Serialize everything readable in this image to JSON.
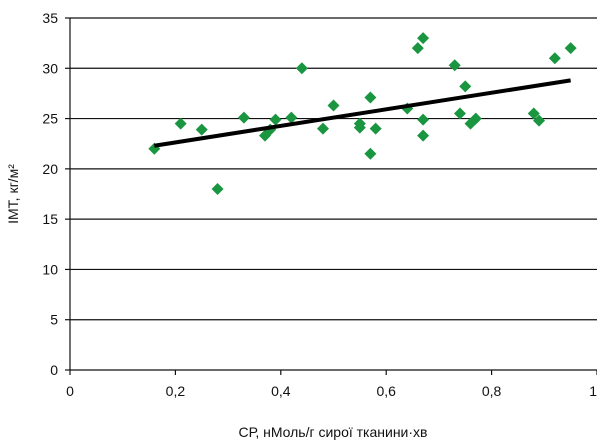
{
  "chart_data": {
    "type": "scatter",
    "xlabel": "СР, нМоль/г сирої тканини·хв",
    "ylabel": "ІМТ, кг/м²",
    "xlim": [
      0,
      1
    ],
    "ylim": [
      0,
      35
    ],
    "xticks": [
      0,
      0.2,
      0.4,
      0.6,
      0.8,
      1
    ],
    "xtick_labels": [
      "0",
      "0,2",
      "0,4",
      "0,6",
      "0,8",
      "1"
    ],
    "yticks": [
      0,
      5,
      10,
      15,
      20,
      25,
      30,
      35
    ],
    "ytick_labels": [
      "0",
      "5",
      "10",
      "15",
      "20",
      "25",
      "30",
      "35"
    ],
    "grid": "horizontal",
    "marker_color": "#1a9641",
    "trendline_color": "#000000",
    "points": [
      {
        "x": 0.16,
        "y": 22.0
      },
      {
        "x": 0.21,
        "y": 24.5
      },
      {
        "x": 0.25,
        "y": 23.9
      },
      {
        "x": 0.28,
        "y": 18.0
      },
      {
        "x": 0.33,
        "y": 25.1
      },
      {
        "x": 0.37,
        "y": 23.3
      },
      {
        "x": 0.38,
        "y": 23.9
      },
      {
        "x": 0.39,
        "y": 24.9
      },
      {
        "x": 0.42,
        "y": 25.1
      },
      {
        "x": 0.44,
        "y": 30.0
      },
      {
        "x": 0.48,
        "y": 24.0
      },
      {
        "x": 0.5,
        "y": 26.3
      },
      {
        "x": 0.55,
        "y": 24.1
      },
      {
        "x": 0.55,
        "y": 24.5
      },
      {
        "x": 0.57,
        "y": 21.5
      },
      {
        "x": 0.57,
        "y": 27.1
      },
      {
        "x": 0.58,
        "y": 24.0
      },
      {
        "x": 0.64,
        "y": 26.0
      },
      {
        "x": 0.66,
        "y": 32.0
      },
      {
        "x": 0.67,
        "y": 33.0
      },
      {
        "x": 0.67,
        "y": 24.9
      },
      {
        "x": 0.67,
        "y": 23.3
      },
      {
        "x": 0.73,
        "y": 30.3
      },
      {
        "x": 0.74,
        "y": 25.5
      },
      {
        "x": 0.75,
        "y": 28.2
      },
      {
        "x": 0.76,
        "y": 24.5
      },
      {
        "x": 0.77,
        "y": 25.0
      },
      {
        "x": 0.88,
        "y": 25.5
      },
      {
        "x": 0.89,
        "y": 24.8
      },
      {
        "x": 0.92,
        "y": 31.0
      },
      {
        "x": 0.95,
        "y": 32.0
      }
    ],
    "trendline": {
      "x": [
        0.16,
        0.95
      ],
      "y": [
        22.3,
        28.8
      ]
    }
  }
}
